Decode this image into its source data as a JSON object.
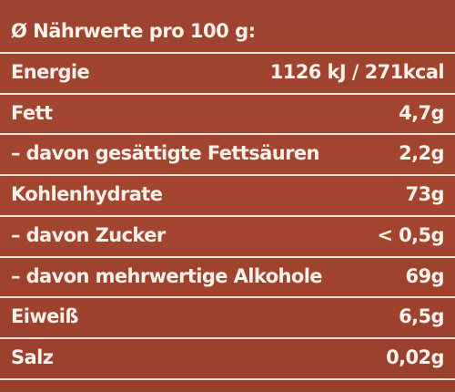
{
  "header": {
    "title": "Ø Nährwerte pro 100 g:"
  },
  "table": {
    "rows": [
      [
        "Energie",
        "1126 kJ / 271kcal"
      ],
      [
        "Fett",
        "4,7g"
      ],
      [
        "– davon gesättigte Fettsäuren",
        "2,2g"
      ],
      [
        "Kohlenhydrate",
        "73g"
      ],
      [
        "– davon Zucker",
        "< 0,5g"
      ],
      [
        "– davon mehrwertige Alkohole",
        "69g"
      ],
      [
        "Eiweiß",
        "6,5g"
      ],
      [
        "Salz",
        "0,02g"
      ]
    ]
  }
}
